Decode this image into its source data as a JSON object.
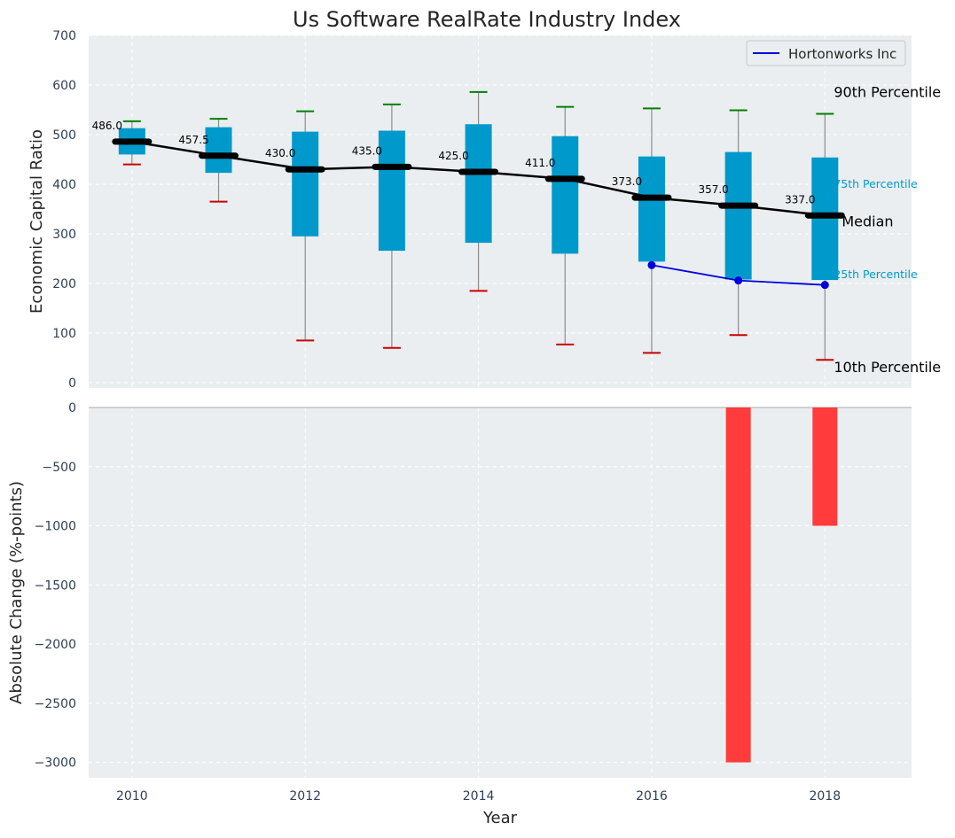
{
  "colors": {
    "panel_bg": "#eaeef0",
    "grid": "#ffffff",
    "box": "#0099cc",
    "whisker": "#8c8c8c",
    "cap_high": "#008000",
    "cap_low": "#cc0000",
    "median": "#000000",
    "company": "#0000dd",
    "bar": "#ff3b3b",
    "tick_text": "#2e3f55"
  },
  "chart_data": [
    {
      "type": "box",
      "title": "Us Software RealRate Industry Index",
      "xlabel": "",
      "ylabel": "Economic Capital Ratio",
      "ylim": [
        0,
        700
      ],
      "yticks": [
        0,
        100,
        200,
        300,
        400,
        500,
        600,
        700
      ],
      "grid": true,
      "legend": {
        "position": "top-right",
        "entries": [
          "Hortonworks Inc"
        ]
      },
      "years": [
        2010,
        2011,
        2012,
        2013,
        2014,
        2015,
        2016,
        2017,
        2018
      ],
      "p10": [
        440,
        365,
        85,
        70,
        185,
        77,
        60,
        96,
        46
      ],
      "p25": [
        460,
        423,
        295,
        266,
        282,
        260,
        244,
        208,
        207
      ],
      "median": [
        486.0,
        457.5,
        430.0,
        435.0,
        425.0,
        411.0,
        373.0,
        357.0,
        337.0
      ],
      "p75": [
        513,
        515,
        506,
        508,
        521,
        497,
        456,
        465,
        454
      ],
      "p90": [
        527,
        532,
        547,
        561,
        586,
        556,
        553,
        549,
        542
      ],
      "median_labels": [
        "486.0",
        "457.5",
        "430.0",
        "435.0",
        "425.0",
        "411.0",
        "373.0",
        "357.0",
        "337.0"
      ],
      "series": [
        {
          "name": "Hortonworks Inc",
          "x": [
            2016,
            2017,
            2018
          ],
          "values": [
            237,
            206,
            197
          ]
        }
      ],
      "percentile_labels": {
        "p90": "90th Percentile",
        "p75": "75th Percentile",
        "median": "Median",
        "p25": "25th Percentile",
        "p10": "10th Percentile"
      }
    },
    {
      "type": "bar",
      "xlabel": "Year",
      "ylabel": "Absolute Change (%-points)",
      "ylim": [
        -3130,
        0
      ],
      "yticks": [
        0,
        -500,
        -1000,
        -1500,
        -2000,
        -2500,
        -3000
      ],
      "ytick_labels": [
        "0",
        "−500",
        "−1000",
        "−1500",
        "−2000",
        "−2500",
        "−3000"
      ],
      "xticks": [
        2010,
        2012,
        2014,
        2016,
        2018
      ],
      "xlim": [
        2009.5,
        2019
      ],
      "grid": true,
      "categories": [
        2017,
        2018
      ],
      "values": [
        -3000,
        -1000
      ]
    }
  ]
}
